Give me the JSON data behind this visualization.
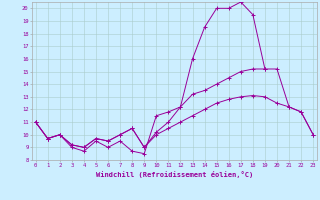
{
  "xlabel": "Windchill (Refroidissement éolien,°C)",
  "x_values": [
    0,
    1,
    2,
    3,
    4,
    5,
    6,
    7,
    8,
    9,
    10,
    11,
    12,
    13,
    14,
    15,
    16,
    17,
    18,
    19,
    20,
    21,
    22,
    23
  ],
  "line1": [
    11.0,
    9.7,
    10.0,
    9.0,
    8.7,
    9.5,
    9.0,
    9.5,
    8.7,
    8.5,
    11.5,
    11.8,
    12.2,
    16.0,
    18.5,
    20.0,
    20.0,
    20.5,
    19.5,
    15.2,
    null,
    null,
    null,
    null
  ],
  "line2": [
    11.0,
    9.7,
    10.0,
    9.2,
    9.0,
    9.7,
    9.5,
    10.0,
    10.5,
    9.0,
    10.2,
    11.0,
    12.2,
    13.2,
    13.5,
    14.0,
    14.5,
    15.0,
    15.2,
    15.2,
    15.2,
    12.2,
    11.8,
    10.0
  ],
  "line3": [
    11.0,
    9.7,
    10.0,
    9.2,
    9.0,
    9.7,
    9.5,
    10.0,
    10.5,
    9.0,
    10.0,
    10.5,
    11.0,
    11.5,
    12.0,
    12.5,
    12.8,
    13.0,
    13.1,
    13.0,
    12.5,
    12.2,
    11.8,
    10.0
  ],
  "color": "#990099",
  "bg_color": "#cceeff",
  "ylim": [
    8,
    20.5
  ],
  "xlim": [
    -0.3,
    23.3
  ],
  "yticks": [
    8,
    9,
    10,
    11,
    12,
    13,
    14,
    15,
    16,
    17,
    18,
    19,
    20
  ],
  "xticks": [
    0,
    1,
    2,
    3,
    4,
    5,
    6,
    7,
    8,
    9,
    10,
    11,
    12,
    13,
    14,
    15,
    16,
    17,
    18,
    19,
    20,
    21,
    22,
    23
  ]
}
